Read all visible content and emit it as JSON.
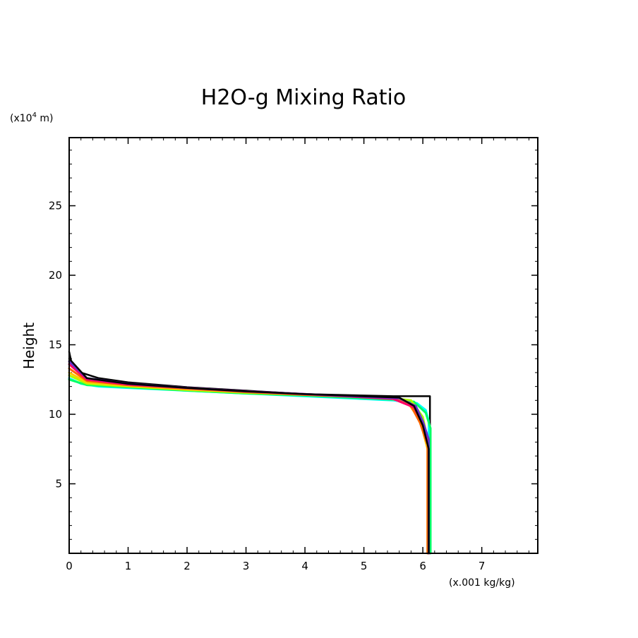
{
  "chart_data": {
    "type": "line",
    "title": "H2O-g Mixing Ratio",
    "xlabel": "(x.001 kg/kg)",
    "ylabel": "Height",
    "y_unit": "(x10",
    "y_unit_exp": "4",
    "y_unit_tail": " m)",
    "xlim": [
      0,
      7.95
    ],
    "ylim": [
      0,
      29.9
    ],
    "xticks": [
      0,
      1,
      2,
      3,
      4,
      5,
      6,
      7
    ],
    "yticks": [
      5,
      10,
      15,
      20,
      25
    ],
    "grid": false,
    "series": [
      {
        "color": "#000000",
        "points": [
          [
            6.12,
            0
          ],
          [
            6.12,
            11.3
          ],
          [
            5.5,
            11.3
          ],
          [
            4,
            11.45
          ],
          [
            3,
            11.7
          ],
          [
            2,
            11.95
          ],
          [
            1,
            12.3
          ],
          [
            0.5,
            12.6
          ],
          [
            0.2,
            13.0
          ],
          [
            0.05,
            13.5
          ],
          [
            0.0,
            14.5
          ]
        ]
      },
      {
        "color": "#00ffff",
        "points": [
          [
            6.1,
            0
          ],
          [
            6.1,
            9.5
          ],
          [
            6.05,
            10.3
          ],
          [
            5.9,
            10.8
          ],
          [
            5.5,
            11.0
          ],
          [
            4,
            11.3
          ],
          [
            3,
            11.5
          ],
          [
            2,
            11.7
          ],
          [
            1,
            11.9
          ],
          [
            0.5,
            12.0
          ],
          [
            0.2,
            12.2
          ],
          [
            0.0,
            12.6
          ]
        ]
      },
      {
        "color": "#00ff66",
        "points": [
          [
            6.13,
            0
          ],
          [
            6.13,
            9.0
          ],
          [
            6.05,
            10.1
          ],
          [
            5.85,
            10.9
          ],
          [
            5.5,
            11.05
          ],
          [
            4,
            11.35
          ],
          [
            3,
            11.5
          ],
          [
            2,
            11.7
          ],
          [
            1,
            11.95
          ],
          [
            0.3,
            12.1
          ],
          [
            0.0,
            12.5
          ]
        ]
      },
      {
        "color": "#aaff00",
        "points": [
          [
            6.1,
            0
          ],
          [
            6.1,
            7.8
          ],
          [
            6.0,
            9.8
          ],
          [
            5.8,
            11.0
          ],
          [
            5.4,
            11.2
          ],
          [
            4,
            11.4
          ],
          [
            3,
            11.55
          ],
          [
            2,
            11.75
          ],
          [
            1,
            12.0
          ],
          [
            0.3,
            12.2
          ],
          [
            0.0,
            12.8
          ]
        ]
      },
      {
        "color": "#ffcc00",
        "points": [
          [
            6.08,
            0
          ],
          [
            6.08,
            7.5
          ],
          [
            5.95,
            9.6
          ],
          [
            5.75,
            10.8
          ],
          [
            5.4,
            11.2
          ],
          [
            4,
            11.4
          ],
          [
            3,
            11.6
          ],
          [
            2,
            11.8
          ],
          [
            1,
            12.05
          ],
          [
            0.3,
            12.3
          ],
          [
            0.0,
            13.0
          ]
        ]
      },
      {
        "color": "#ff6600",
        "points": [
          [
            6.08,
            0
          ],
          [
            6.08,
            7.8
          ],
          [
            5.95,
            9.4
          ],
          [
            5.8,
            10.6
          ],
          [
            5.5,
            11.15
          ],
          [
            4,
            11.4
          ],
          [
            3,
            11.6
          ],
          [
            2,
            11.85
          ],
          [
            1,
            12.1
          ],
          [
            0.3,
            12.4
          ],
          [
            0.0,
            13.3
          ]
        ]
      },
      {
        "color": "#ff0066",
        "points": [
          [
            6.1,
            0
          ],
          [
            6.1,
            8.0
          ],
          [
            6.0,
            9.3
          ],
          [
            5.85,
            10.5
          ],
          [
            5.5,
            11.1
          ],
          [
            4,
            11.45
          ],
          [
            3,
            11.65
          ],
          [
            2,
            11.9
          ],
          [
            1,
            12.15
          ],
          [
            0.3,
            12.5
          ],
          [
            0.0,
            13.6
          ]
        ]
      },
      {
        "color": "#6633cc",
        "points": [
          [
            6.1,
            0
          ],
          [
            6.1,
            8.2
          ],
          [
            6.0,
            9.5
          ],
          [
            5.88,
            10.6
          ],
          [
            5.6,
            11.15
          ],
          [
            4,
            11.45
          ],
          [
            3,
            11.65
          ],
          [
            2,
            11.9
          ],
          [
            1,
            12.2
          ],
          [
            0.3,
            12.6
          ],
          [
            0.0,
            13.8
          ]
        ]
      },
      {
        "color": "#000000",
        "points": [
          [
            6.1,
            0
          ],
          [
            6.1,
            7.5
          ],
          [
            6.0,
            9.2
          ],
          [
            5.85,
            10.6
          ],
          [
            5.6,
            11.2
          ],
          [
            4,
            11.45
          ],
          [
            3,
            11.65
          ],
          [
            2,
            11.9
          ],
          [
            1,
            12.2
          ],
          [
            0.3,
            12.6
          ],
          [
            0.0,
            14.0
          ]
        ]
      }
    ]
  }
}
